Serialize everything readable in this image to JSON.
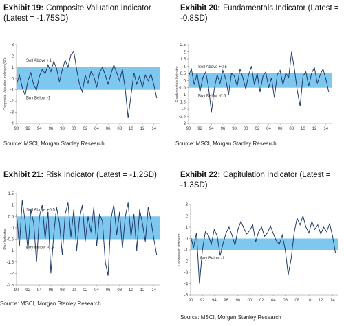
{
  "chart_data": [
    {
      "type": "line",
      "exhibit": "Exhibit 19:",
      "title": "Composite Valuation Indicator (Latest = -1.75SD)",
      "source": "Source: MSCI, Morgan Stanley Research",
      "y_label": "Composite Valuation Indicator (SD)",
      "sell_label": "Sell Above +1",
      "buy_label": "Buy Below -1",
      "band": [
        -1,
        1
      ],
      "band_color": "#7ec8f0",
      "color": "#1f3a68",
      "xlim": [
        1990,
        2015
      ],
      "ylim": [
        -4,
        3
      ],
      "yticks": [
        -4,
        -3,
        -2,
        -1,
        0,
        1,
        2,
        3
      ],
      "xticks": [
        {
          "value": 1990,
          "label": "90"
        },
        {
          "value": 1992,
          "label": "92"
        },
        {
          "value": 1994,
          "label": "94"
        },
        {
          "value": 1996,
          "label": "96"
        },
        {
          "value": 1998,
          "label": "98"
        },
        {
          "value": 2000,
          "label": "00"
        },
        {
          "value": 2002,
          "label": "02"
        },
        {
          "value": 2004,
          "label": "04"
        },
        {
          "value": 2006,
          "label": "06"
        },
        {
          "value": 2008,
          "label": "08"
        },
        {
          "value": 2010,
          "label": "10"
        },
        {
          "value": 2012,
          "label": "12"
        },
        {
          "value": 2014,
          "label": "14"
        }
      ],
      "x": [
        1990,
        1990.5,
        1991,
        1991.5,
        1992,
        1992.5,
        1993,
        1993.5,
        1994,
        1994.5,
        1995,
        1995.5,
        1996,
        1996.5,
        1997,
        1997.5,
        1998,
        1998.5,
        1999,
        1999.5,
        2000,
        2000.5,
        2001,
        2001.5,
        2002,
        2002.5,
        2003,
        2003.5,
        2004,
        2004.5,
        2005,
        2005.5,
        2006,
        2006.5,
        2007,
        2007.5,
        2008,
        2008.5,
        2009,
        2009.5,
        2010,
        2010.5,
        2011,
        2011.5,
        2012,
        2012.5,
        2013,
        2013.5,
        2014,
        2014.5
      ],
      "values": [
        -0.5,
        0.3,
        -0.8,
        -1.5,
        -0.2,
        0.5,
        -0.6,
        -1.0,
        0.2,
        0.8,
        0.4,
        1.2,
        0.6,
        1.5,
        0.9,
        -0.3,
        0.8,
        1.6,
        1.0,
        2.1,
        2.4,
        0.8,
        -0.5,
        -1.2,
        0.3,
        -0.4,
        0.6,
        0.2,
        -0.8,
        0.5,
        1.0,
        0.3,
        -0.5,
        0.4,
        1.2,
        0.5,
        -0.2,
        0.8,
        -1.0,
        -3.5,
        -1.5,
        0.5,
        -0.5,
        0.2,
        -0.8,
        0.3,
        -0.2,
        0.4,
        -0.6,
        -1.75
      ]
    },
    {
      "type": "line",
      "exhibit": "Exhibit 20:",
      "title": "Fundamentals Indicator (Latest = -0.8SD)",
      "source": "Source: MSCI, Morgan Stanley Research",
      "y_label": "Fundamentals Indicator",
      "sell_label": "Sell Above +0.5",
      "buy_label": "Buy Below -0.5",
      "band": [
        -0.5,
        0.5
      ],
      "band_color": "#7ec8f0",
      "color": "#1f3a68",
      "xlim": [
        1990,
        2015
      ],
      "ylim": [
        -3,
        2.5
      ],
      "yticks": [
        -3,
        -2.5,
        -2,
        -1.5,
        -1,
        -0.5,
        0,
        0.5,
        1,
        1.5,
        2,
        2.5
      ],
      "xticks": [
        {
          "value": 1990,
          "label": "90"
        },
        {
          "value": 1992,
          "label": "92"
        },
        {
          "value": 1994,
          "label": "94"
        },
        {
          "value": 1996,
          "label": "96"
        },
        {
          "value": 1998,
          "label": "98"
        },
        {
          "value": 2000,
          "label": "00"
        },
        {
          "value": 2002,
          "label": "02"
        },
        {
          "value": 2004,
          "label": "04"
        },
        {
          "value": 2006,
          "label": "06"
        },
        {
          "value": 2008,
          "label": "08"
        },
        {
          "value": 2010,
          "label": "10"
        },
        {
          "value": 2012,
          "label": "12"
        },
        {
          "value": 2014,
          "label": "14"
        }
      ],
      "x": [
        1990,
        1990.5,
        1991,
        1991.5,
        1992,
        1992.5,
        1993,
        1993.5,
        1994,
        1994.5,
        1995,
        1995.5,
        1996,
        1996.5,
        1997,
        1997.5,
        1998,
        1998.5,
        1999,
        1999.5,
        2000,
        2000.5,
        2001,
        2001.5,
        2002,
        2002.5,
        2003,
        2003.5,
        2004,
        2004.5,
        2005,
        2005.5,
        2006,
        2006.5,
        2007,
        2007.5,
        2008,
        2008.5,
        2009,
        2009.5,
        2010,
        2010.5,
        2011,
        2011.5,
        2012,
        2012.5,
        2013,
        2013.5,
        2014,
        2014.5
      ],
      "values": [
        0.3,
        0.8,
        -0.3,
        0.5,
        -0.8,
        0.2,
        0.6,
        -0.5,
        -2.2,
        -0.6,
        0.4,
        -0.2,
        0.7,
        0.1,
        -1.0,
        0.5,
        0.3,
        -0.4,
        0.8,
        0.2,
        -0.6,
        0.4,
        1.0,
        -0.3,
        0.5,
        -0.8,
        0.3,
        0.6,
        -0.5,
        0.2,
        -1.2,
        0.4,
        0.7,
        -0.3,
        0.5,
        0.2,
        2.0,
        0.8,
        -0.7,
        -1.8,
        0.3,
        0.6,
        -0.4,
        0.5,
        0.9,
        -0.2,
        0.4,
        0.8,
        0.1,
        -0.8
      ]
    },
    {
      "type": "line",
      "exhibit": "Exhibit 21:",
      "title": "Risk Indicator (Latest = -1.2SD)",
      "source": "Source: MSCI, Morgan Stanley Research",
      "y_label": "Risk Indicator",
      "sell_label": "Sell Above +0.5",
      "buy_label": "Buy Below -0.5",
      "band": [
        -0.5,
        0.5
      ],
      "band_color": "#7ec8f0",
      "color": "#1f3a68",
      "xlim": [
        1990,
        2015
      ],
      "ylim": [
        -2.5,
        1.5
      ],
      "yticks": [
        -2.5,
        -2,
        -1.5,
        -1,
        -0.5,
        0,
        0.5,
        1,
        1.5
      ],
      "xticks": [
        {
          "value": 1990,
          "label": "90"
        },
        {
          "value": 1992,
          "label": "92"
        },
        {
          "value": 1994,
          "label": "94"
        },
        {
          "value": 1996,
          "label": "96"
        },
        {
          "value": 1998,
          "label": "98"
        },
        {
          "value": 2000,
          "label": "00"
        },
        {
          "value": 2002,
          "label": "02"
        },
        {
          "value": 2004,
          "label": "04"
        },
        {
          "value": 2006,
          "label": "06"
        },
        {
          "value": 2008,
          "label": "08"
        },
        {
          "value": 2010,
          "label": "10"
        },
        {
          "value": 2012,
          "label": "12"
        },
        {
          "value": 2014,
          "label": "14"
        }
      ],
      "x": [
        1990,
        1990.5,
        1991,
        1991.5,
        1992,
        1992.5,
        1993,
        1993.5,
        1994,
        1994.5,
        1995,
        1995.5,
        1996,
        1996.5,
        1997,
        1997.5,
        1998,
        1998.5,
        1999,
        1999.5,
        2000,
        2000.5,
        2001,
        2001.5,
        2002,
        2002.5,
        2003,
        2003.5,
        2004,
        2004.5,
        2005,
        2005.5,
        2006,
        2006.5,
        2007,
        2007.5,
        2008,
        2008.5,
        2009,
        2009.5,
        2010,
        2010.5,
        2011,
        2011.5,
        2012,
        2012.5,
        2013,
        2013.5,
        2014,
        2014.5
      ],
      "values": [
        0.6,
        -0.8,
        1.2,
        0.3,
        -1.0,
        0.8,
        0.2,
        -1.5,
        0.5,
        1.0,
        -0.5,
        0.7,
        -2.0,
        -0.3,
        0.9,
        0.2,
        -1.2,
        0.6,
        1.1,
        -0.4,
        0.8,
        -1.0,
        0.4,
        1.0,
        -0.6,
        0.5,
        -0.2,
        0.9,
        -0.8,
        0.6,
        0.3,
        -1.5,
        -2.1,
        0.4,
        1.0,
        -0.3,
        0.7,
        -0.9,
        0.5,
        1.1,
        -0.4,
        0.6,
        -1.0,
        0.8,
        0.2,
        -0.6,
        0.9,
        0.3,
        -0.5,
        -1.2
      ]
    },
    {
      "type": "line",
      "exhibit": "Exhibit 22:",
      "title": "Capitulation Indicator (Latest = -1.3SD)",
      "source": "Source: MSCI, Morgan Stanley Research",
      "y_label": "Capitulation Indicator",
      "buy_label": "Buy Below -1",
      "band": [
        -1,
        0
      ],
      "band_color": "#7ec8f0",
      "color": "#1f3a68",
      "xlim": [
        1990,
        2015
      ],
      "ylim": [
        -5,
        3
      ],
      "yticks": [
        -5,
        -4,
        -3,
        -2,
        -1,
        0,
        1,
        2,
        3
      ],
      "xticks": [
        {
          "value": 1990,
          "label": "90"
        },
        {
          "value": 1992,
          "label": "92"
        },
        {
          "value": 1994,
          "label": "94"
        },
        {
          "value": 1996,
          "label": "96"
        },
        {
          "value": 1998,
          "label": "98"
        },
        {
          "value": 2000,
          "label": "00"
        },
        {
          "value": 2002,
          "label": "02"
        },
        {
          "value": 2004,
          "label": "04"
        },
        {
          "value": 2006,
          "label": "06"
        },
        {
          "value": 2008,
          "label": "08"
        },
        {
          "value": 2010,
          "label": "10"
        },
        {
          "value": 2012,
          "label": "12"
        },
        {
          "value": 2014,
          "label": "14"
        }
      ],
      "x": [
        1990,
        1990.5,
        1991,
        1991.5,
        1992,
        1992.5,
        1993,
        1993.5,
        1994,
        1994.5,
        1995,
        1995.5,
        1996,
        1996.5,
        1997,
        1997.5,
        1998,
        1998.5,
        1999,
        1999.5,
        2000,
        2000.5,
        2001,
        2001.5,
        2002,
        2002.5,
        2003,
        2003.5,
        2004,
        2004.5,
        2005,
        2005.5,
        2006,
        2006.5,
        2007,
        2007.5,
        2008,
        2008.5,
        2009,
        2009.5,
        2010,
        2010.5,
        2011,
        2011.5,
        2012,
        2012.5,
        2013,
        2013.5,
        2014,
        2014.5
      ],
      "values": [
        0.2,
        -0.8,
        0.5,
        -4.0,
        -1.0,
        0.6,
        0.3,
        -0.5,
        0.8,
        0.2,
        -1.5,
        -0.4,
        0.5,
        1.0,
        0.3,
        -0.6,
        0.8,
        1.5,
        0.9,
        0.4,
        0.7,
        1.2,
        -0.3,
        0.6,
        1.0,
        0.2,
        0.5,
        1.1,
        0.4,
        -0.2,
        -0.5,
        0.3,
        -1.0,
        -3.2,
        -1.8,
        0.5,
        1.8,
        1.2,
        2.0,
        1.0,
        0.5,
        1.5,
        0.8,
        1.2,
        0.4,
        1.0,
        0.6,
        1.3,
        0.2,
        -1.3
      ]
    }
  ]
}
